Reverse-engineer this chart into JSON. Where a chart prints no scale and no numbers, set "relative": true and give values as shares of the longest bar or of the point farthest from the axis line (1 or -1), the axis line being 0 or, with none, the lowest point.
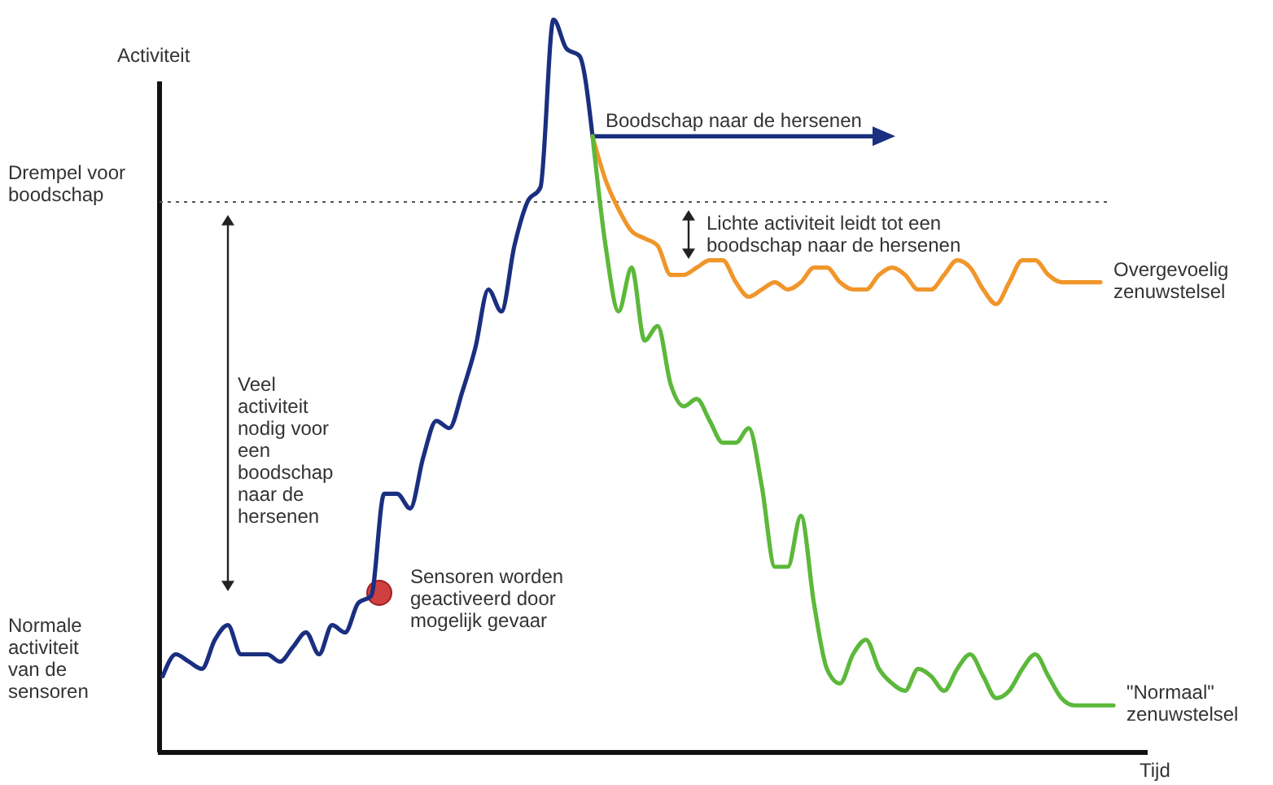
{
  "chart_data": {
    "type": "line",
    "relative": true,
    "ylabel": "Activiteit",
    "categories": [
      null,
      null,
      null,
      null,
      null,
      null,
      null,
      null,
      null,
      null,
      null,
      null,
      null,
      null,
      null,
      null,
      null,
      null,
      null,
      null,
      null,
      null,
      null,
      null,
      null,
      null,
      null,
      null,
      null,
      null,
      null,
      null,
      null,
      null,
      null,
      null,
      null,
      null,
      null,
      null,
      null,
      null,
      null,
      null,
      null,
      null,
      null,
      null,
      null,
      null,
      null,
      null,
      null,
      null,
      null,
      null,
      null,
      null,
      null,
      null,
      null,
      null,
      null,
      null,
      null,
      null,
      null,
      null,
      null,
      null,
      null,
      null,
      null,
      null,
      null,
      null
    ],
    "series": [
      {
        "color": "#1a2f80",
        "values": [
          0.1,
          0.13,
          0.12,
          0.11,
          0.15,
          0.17,
          0.13,
          0.13,
          0.13,
          0.12,
          0.14,
          0.16,
          0.13,
          0.17,
          0.16,
          0.2,
          0.21,
          0.35,
          0.35,
          0.33,
          0.4,
          0.45,
          0.44,
          0.49,
          0.55,
          0.63,
          0.6,
          0.69,
          0.75,
          0.77,
          1.0,
          0.96,
          0.95,
          0.84,
          null,
          null,
          null,
          null,
          null,
          null,
          null,
          null,
          null,
          null,
          null,
          null,
          null,
          null,
          null,
          null,
          null,
          null,
          null,
          null,
          null,
          null,
          null,
          null,
          null,
          null,
          null,
          null,
          null,
          null,
          null,
          null,
          null,
          null,
          null,
          null,
          null,
          null,
          null,
          null,
          null,
          null
        ]
      },
      {
        "name": "Overgevoelig zenuwstelsel",
        "color": "#f0962a",
        "values": [
          null,
          null,
          null,
          null,
          null,
          null,
          null,
          null,
          null,
          null,
          null,
          null,
          null,
          null,
          null,
          null,
          null,
          null,
          null,
          null,
          null,
          null,
          null,
          null,
          null,
          null,
          null,
          null,
          null,
          null,
          null,
          null,
          null,
          0.84,
          0.78,
          0.74,
          0.71,
          0.7,
          0.69,
          0.65,
          0.65,
          0.66,
          0.67,
          0.67,
          0.64,
          0.62,
          0.63,
          0.64,
          0.63,
          0.64,
          0.66,
          0.66,
          0.64,
          0.63,
          0.63,
          0.65,
          0.66,
          0.65,
          0.63,
          0.63,
          0.65,
          0.67,
          0.66,
          0.63,
          0.61,
          0.64,
          0.67,
          0.67,
          0.65,
          0.64,
          0.64,
          0.64,
          0.64,
          null,
          null,
          null
        ]
      },
      {
        "name": "\"Normaal\" zenuwstelsel",
        "color": "#5cb83a",
        "values": [
          null,
          null,
          null,
          null,
          null,
          null,
          null,
          null,
          null,
          null,
          null,
          null,
          null,
          null,
          null,
          null,
          null,
          null,
          null,
          null,
          null,
          null,
          null,
          null,
          null,
          null,
          null,
          null,
          null,
          null,
          null,
          null,
          null,
          0.84,
          0.69,
          0.6,
          0.66,
          0.56,
          0.58,
          0.5,
          0.47,
          0.48,
          0.45,
          0.42,
          0.42,
          0.44,
          0.36,
          0.25,
          0.25,
          0.32,
          0.2,
          0.11,
          0.09,
          0.13,
          0.15,
          0.11,
          0.09,
          0.08,
          0.11,
          0.1,
          0.08,
          0.11,
          0.13,
          0.1,
          0.07,
          0.08,
          0.11,
          0.13,
          0.1,
          0.07,
          0.06,
          0.06,
          0.06,
          0.06,
          null,
          null
        ]
      }
    ],
    "ref_lines": [
      {
        "axis": "y",
        "value": 0.75,
        "label": "Drempel voor boodschap",
        "line_style": "dotted",
        "color": "#555555"
      }
    ],
    "annotations": [
      "Normale activiteit van de sensoren",
      "Veel activiteit nodig voor een boodschap naar de hersenen",
      "Sensoren worden geactiveerd door mogelijk gevaar",
      "Boodschap naar de hersenen",
      "Lichte activiteit leidt tot een boodschap naar de hersenen"
    ],
    "xlabel": "Tijd"
  }
}
